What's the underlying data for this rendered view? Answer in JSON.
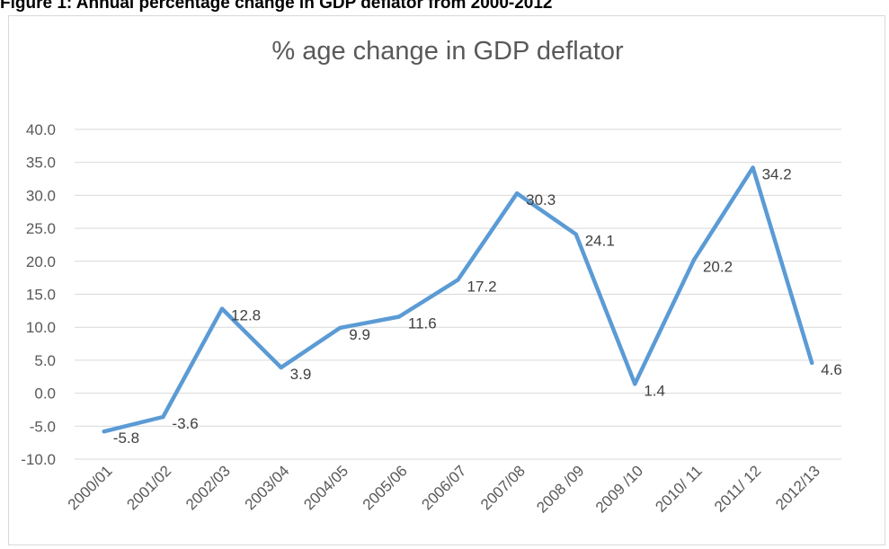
{
  "figure_caption": "Figure 1: Annual percentage change in GDP deflator from 2000-2012",
  "chart_data": {
    "type": "line",
    "title": "% age change in GDP deflator",
    "xlabel": "",
    "ylabel": "",
    "categories": [
      "2000/01",
      "2001/02",
      "2002/03",
      "2003/04",
      "2004/05",
      "2005/06",
      "2006/07",
      "2007/08",
      "2008 /09",
      "2009 /10",
      "2010/ 11",
      "2011/ 12",
      "2012/13"
    ],
    "series": [
      {
        "values": [
          -5.8,
          -3.6,
          12.8,
          3.9,
          9.9,
          11.6,
          17.2,
          30.3,
          24.1,
          1.4,
          20.2,
          34.2,
          4.6
        ]
      }
    ],
    "data_labels": [
      "-5.8",
      "-3.6",
      "12.8",
      "3.9",
      "9.9",
      "11.6",
      "17.2",
      "30.3",
      "24.1",
      "1.4",
      "20.2",
      "34.2",
      "4.6"
    ],
    "y_ticks": [
      "40.0",
      "35.0",
      "30.0",
      "25.0",
      "20.0",
      "15.0",
      "10.0",
      "5.0",
      "0.0",
      "-5.0",
      "-10.0"
    ],
    "ylim": [
      -10,
      40
    ],
    "grid": true,
    "legend": "none",
    "line_color": "#5b9bd5",
    "grid_color": "#d9d9d9"
  }
}
